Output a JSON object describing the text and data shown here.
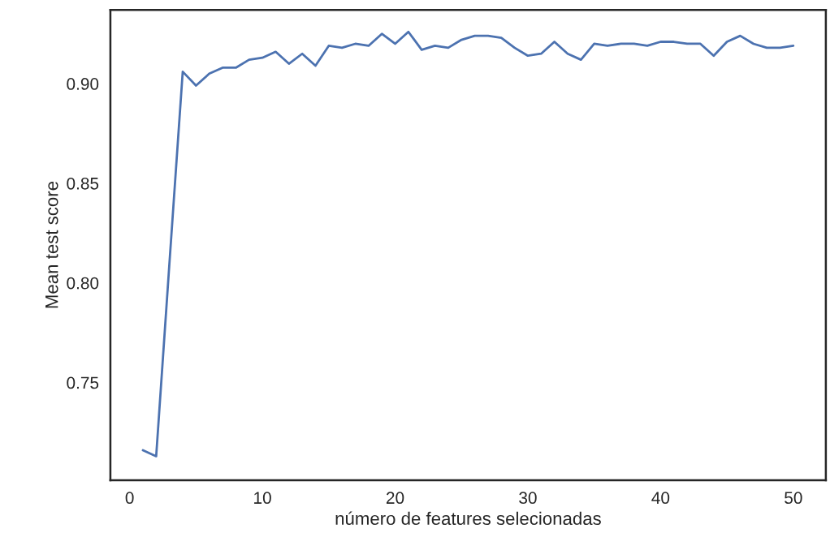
{
  "chart_data": {
    "type": "line",
    "xlabel": "número de features selecionadas",
    "ylabel": "Mean test score",
    "x": [
      1,
      2,
      3,
      4,
      5,
      6,
      7,
      8,
      9,
      10,
      11,
      12,
      13,
      14,
      15,
      16,
      17,
      18,
      19,
      20,
      21,
      22,
      23,
      24,
      25,
      26,
      27,
      28,
      29,
      30,
      31,
      32,
      33,
      34,
      35,
      36,
      37,
      38,
      39,
      40,
      41,
      42,
      43,
      44,
      45,
      46,
      47,
      48,
      49,
      50
    ],
    "series": [
      {
        "color": "#4c72b0",
        "values": [
          0.716,
          0.713,
          0.81,
          0.906,
          0.899,
          0.905,
          0.908,
          0.908,
          0.912,
          0.913,
          0.916,
          0.91,
          0.915,
          0.909,
          0.919,
          0.918,
          0.92,
          0.919,
          0.925,
          0.92,
          0.926,
          0.917,
          0.919,
          0.918,
          0.922,
          0.924,
          0.924,
          0.923,
          0.918,
          0.914,
          0.915,
          0.921,
          0.915,
          0.912,
          0.92,
          0.919,
          0.92,
          0.92,
          0.919,
          0.921,
          0.921,
          0.92,
          0.92,
          0.914,
          0.921,
          0.924,
          0.92,
          0.918,
          0.918,
          0.919
        ]
      }
    ],
    "xlim": [
      -1.45,
      52.45
    ],
    "ylim": [
      0.701,
      0.937
    ],
    "xticks": [
      0,
      10,
      20,
      30,
      40,
      50
    ],
    "yticks": [
      {
        "value": 0.75,
        "label": "0.75"
      },
      {
        "value": 0.8,
        "label": "0.80"
      },
      {
        "value": 0.85,
        "label": "0.85"
      },
      {
        "value": 0.9,
        "label": "0.90"
      }
    ],
    "grid": false,
    "legend": false
  }
}
